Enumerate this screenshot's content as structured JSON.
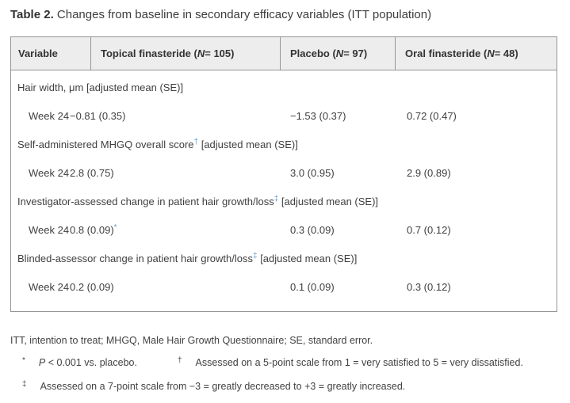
{
  "title": {
    "bold": "Table 2.",
    "rest": " Changes from baseline in secondary efficacy variables (ITT population)"
  },
  "table": {
    "columns": [
      "Variable",
      "Topical finasteride (*N* = 105)",
      "Placebo (*N* = 97)",
      "Oral finasteride (*N* = 48)"
    ],
    "sections": [
      {
        "label": "Hair width, μm [adjusted mean (SE)]",
        "rows": [
          {
            "variable": "Week 24",
            "values": [
              "−0.81 (0.35)",
              "−1.53 (0.37)",
              "0.72 (0.47)"
            ]
          }
        ]
      },
      {
        "label": "Self-administered MHGQ overall score^†^ [adjusted mean (SE)]",
        "rows": [
          {
            "variable": "Week 24",
            "values": [
              "2.8 (0.75)",
              "3.0 (0.95)",
              "2.9 (0.89)"
            ]
          }
        ]
      },
      {
        "label": "Investigator-assessed change in patient hair growth/loss^‡^ [adjusted mean (SE)]",
        "rows": [
          {
            "variable": "Week 24",
            "values": [
              "0.8 (0.09)^*^",
              "0.3 (0.09)",
              "0.7 (0.12)"
            ]
          }
        ]
      },
      {
        "label": "Blinded-assessor change in patient hair growth/loss^‡^ [adjusted mean (SE)]",
        "rows": [
          {
            "variable": "Week 24",
            "values": [
              "0.2 (0.09)",
              "0.1 (0.09)",
              "0.3 (0.12)"
            ]
          }
        ]
      }
    ]
  },
  "footnotes": {
    "abbreviations": "ITT, intention to treat; MHGQ, Male Hair Growth Questionnaire; SE, standard error.",
    "notes": [
      {
        "marker": "*",
        "text": "*P* < 0.001 vs. placebo."
      },
      {
        "marker": "†",
        "text": "Assessed on a 5-point scale from 1 = very satisfied to 5 = very dissatisfied."
      },
      {
        "marker": "‡",
        "text": "Assessed on a 7-point scale from −3 = greatly decreased to +3 = greatly increased."
      }
    ]
  },
  "colors": {
    "footnote_link_blue": "#5b9bd5",
    "header_background": "#ededed",
    "table_border": "#969696",
    "text": "#3f3f3f"
  }
}
